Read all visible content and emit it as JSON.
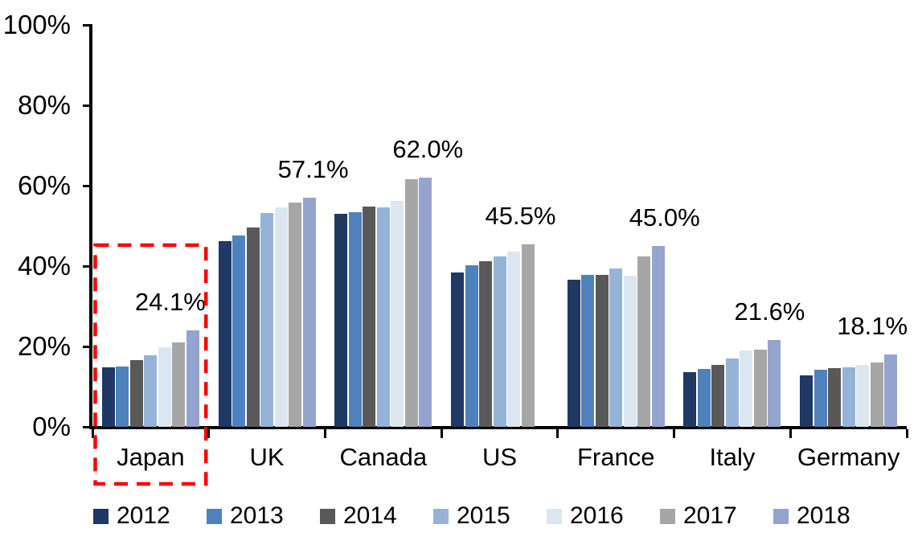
{
  "chart_data": {
    "type": "bar",
    "title": "",
    "categories": [
      "Japan",
      "UK",
      "Canada",
      "US",
      "France",
      "Italy",
      "Germany"
    ],
    "series": [
      {
        "name": "2012",
        "color": "#1F3864",
        "values": [
          14.8,
          46.3,
          53.0,
          38.4,
          36.7,
          13.6,
          12.8
        ]
      },
      {
        "name": "2013",
        "color": "#4F81BD",
        "values": [
          15.0,
          47.6,
          53.4,
          40.2,
          37.9,
          14.4,
          14.3
        ]
      },
      {
        "name": "2014",
        "color": "#595959",
        "values": [
          16.6,
          49.6,
          54.9,
          41.2,
          37.8,
          15.5,
          14.6
        ]
      },
      {
        "name": "2015",
        "color": "#95B3D7",
        "values": [
          17.9,
          53.2,
          54.7,
          42.5,
          39.5,
          17.1,
          14.9
        ]
      },
      {
        "name": "2016",
        "color": "#DCE6F1",
        "values": [
          19.8,
          54.6,
          56.2,
          43.7,
          37.7,
          19.1,
          15.5
        ]
      },
      {
        "name": "2017",
        "color": "#A6A6A6",
        "values": [
          21.0,
          55.9,
          61.7,
          45.5,
          42.5,
          19.3,
          16.1
        ]
      },
      {
        "name": "2018",
        "color": "#95A4CF",
        "values": [
          24.1,
          57.1,
          62.0,
          null,
          45.0,
          21.6,
          18.1
        ]
      }
    ],
    "data_labels": [
      {
        "category": "Japan",
        "text": "24.1%",
        "offset_x": -28
      },
      {
        "category": "UK",
        "text": "57.1%",
        "offset_x": 5
      },
      {
        "category": "Canada",
        "text": "62.0%",
        "offset_x": 3
      },
      {
        "category": "US",
        "text": "45.5%",
        "offset_x": -9
      },
      {
        "category": "France",
        "text": "45.0%",
        "offset_x": 8
      },
      {
        "category": "Italy",
        "text": "21.6%",
        "offset_x": -6
      },
      {
        "category": "Germany",
        "text": "18.1%",
        "offset_x": -23
      }
    ],
    "y_axis": {
      "min": 0,
      "max": 100,
      "tick_step": 20,
      "tick_labels": [
        "0%",
        "20%",
        "40%",
        "60%",
        "80%",
        "100%"
      ]
    },
    "grid": false,
    "legend": {
      "position": "bottom",
      "entries": [
        "2012",
        "2013",
        "2014",
        "2015",
        "2016",
        "2017",
        "2018"
      ]
    },
    "annotation": {
      "type": "dashed-outline",
      "category": "Japan",
      "color": "#FF0000"
    },
    "axis_color": "#000000"
  }
}
